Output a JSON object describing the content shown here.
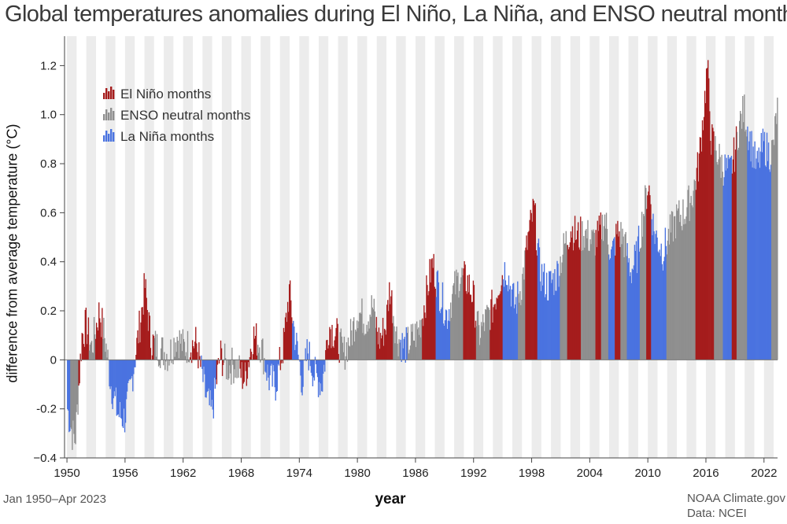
{
  "chart_data": {
    "type": "bar",
    "title": "Global temperatures anomalies during El Niño, La Niña, and ENSO neutral months",
    "xlabel": "year",
    "ylabel": "difference from average temperature (°C)",
    "date_range": "Jan 1950–Apr 2023",
    "credit_line1": "NOAA Climate.gov",
    "credit_line2": "Data: NCEI",
    "ylim": [
      -0.4,
      1.32
    ],
    "xlim": [
      1949.75,
      2023.4
    ],
    "yticks": [
      -0.4,
      -0.2,
      0,
      0.2,
      0.4,
      0.6,
      0.8,
      1.0,
      1.2
    ],
    "ytick_labels": [
      "−0.4",
      "-0.2",
      "0",
      "0.2",
      "0.4",
      "0.6",
      "0.8",
      "1.0",
      "1.2"
    ],
    "xticks": [
      1950,
      1956,
      1962,
      1968,
      1974,
      1980,
      1986,
      1992,
      1998,
      2004,
      2010,
      2016,
      2022
    ],
    "xtick_labels": [
      "1950",
      "1956",
      "1962",
      "1968",
      "1974",
      "1980",
      "1986",
      "1992",
      "1998",
      "2004",
      "2010",
      "2016",
      "2022"
    ],
    "legend_position": "top-left",
    "colors": {
      "el_nino": "#a51c1c",
      "neutral": "#8f8f8f",
      "la_nina": "#4a73e0",
      "band": "#ececec"
    },
    "series": [
      {
        "key": "el_nino",
        "name": "El Niño months"
      },
      {
        "key": "neutral",
        "name": "ENSO neutral months"
      },
      {
        "key": "la_nina",
        "name": "La Niña months"
      }
    ],
    "anchor_months": [
      [
        1950.0,
        -0.2,
        "la_nina"
      ],
      [
        1950.5,
        -0.3,
        "neutral"
      ],
      [
        1950.8,
        -0.33,
        "neutral"
      ],
      [
        1951.5,
        0.1,
        "el_nino"
      ],
      [
        1951.9,
        0.14,
        "el_nino"
      ],
      [
        1952.5,
        0.05,
        "neutral"
      ],
      [
        1953.3,
        0.2,
        "el_nino"
      ],
      [
        1953.9,
        0.08,
        "neutral"
      ],
      [
        1954.5,
        -0.1,
        "la_nina"
      ],
      [
        1955.2,
        -0.22,
        "la_nina"
      ],
      [
        1955.9,
        -0.24,
        "la_nina"
      ],
      [
        1956.5,
        -0.12,
        "la_nina"
      ],
      [
        1957.5,
        0.15,
        "el_nino"
      ],
      [
        1958.0,
        0.3,
        "el_nino"
      ],
      [
        1958.6,
        0.08,
        "el_nino"
      ],
      [
        1959.3,
        0.05,
        "neutral"
      ],
      [
        1960.5,
        0.02,
        "neutral"
      ],
      [
        1961.3,
        0.1,
        "neutral"
      ],
      [
        1962.0,
        0.05,
        "neutral"
      ],
      [
        1963.3,
        0.07,
        "el_nino"
      ],
      [
        1964.3,
        -0.15,
        "la_nina"
      ],
      [
        1964.9,
        -0.22,
        "la_nina"
      ],
      [
        1965.8,
        0.02,
        "el_nino"
      ],
      [
        1966.5,
        -0.03,
        "neutral"
      ],
      [
        1967.3,
        -0.02,
        "neutral"
      ],
      [
        1968.3,
        -0.08,
        "el_nino"
      ],
      [
        1969.2,
        0.1,
        "el_nino"
      ],
      [
        1970.0,
        0.06,
        "neutral"
      ],
      [
        1970.8,
        -0.08,
        "la_nina"
      ],
      [
        1971.5,
        -0.1,
        "la_nina"
      ],
      [
        1972.3,
        0.05,
        "el_nino"
      ],
      [
        1972.9,
        0.28,
        "el_nino"
      ],
      [
        1973.5,
        0.1,
        "la_nina"
      ],
      [
        1974.3,
        -0.1,
        "la_nina"
      ],
      [
        1974.8,
        0.04,
        "la_nina"
      ],
      [
        1975.5,
        -0.06,
        "la_nina"
      ],
      [
        1976.3,
        -0.1,
        "la_nina"
      ],
      [
        1977.0,
        0.14,
        "el_nino"
      ],
      [
        1977.8,
        0.1,
        "el_nino"
      ],
      [
        1978.5,
        0.02,
        "neutral"
      ],
      [
        1979.3,
        0.1,
        "neutral"
      ],
      [
        1980.0,
        0.2,
        "neutral"
      ],
      [
        1980.8,
        0.16,
        "neutral"
      ],
      [
        1981.5,
        0.22,
        "neutral"
      ],
      [
        1982.2,
        0.08,
        "el_nino"
      ],
      [
        1982.9,
        0.14,
        "el_nino"
      ],
      [
        1983.3,
        0.3,
        "el_nino"
      ],
      [
        1984.0,
        0.1,
        "neutral"
      ],
      [
        1984.8,
        0.05,
        "la_nina"
      ],
      [
        1985.5,
        0.08,
        "neutral"
      ],
      [
        1986.3,
        0.12,
        "neutral"
      ],
      [
        1987.0,
        0.25,
        "el_nino"
      ],
      [
        1987.7,
        0.4,
        "el_nino"
      ],
      [
        1988.4,
        0.28,
        "la_nina"
      ],
      [
        1989.2,
        0.18,
        "la_nina"
      ],
      [
        1989.9,
        0.28,
        "neutral"
      ],
      [
        1990.5,
        0.34,
        "neutral"
      ],
      [
        1991.3,
        0.32,
        "el_nino"
      ],
      [
        1991.9,
        0.26,
        "el_nino"
      ],
      [
        1992.5,
        0.1,
        "neutral"
      ],
      [
        1993.2,
        0.16,
        "neutral"
      ],
      [
        1994.0,
        0.22,
        "el_nino"
      ],
      [
        1994.6,
        0.32,
        "el_nino"
      ],
      [
        1995.3,
        0.38,
        "la_nina"
      ],
      [
        1996.2,
        0.22,
        "la_nina"
      ],
      [
        1996.9,
        0.3,
        "neutral"
      ],
      [
        1997.6,
        0.5,
        "el_nino"
      ],
      [
        1998.2,
        0.62,
        "el_nino"
      ],
      [
        1998.8,
        0.36,
        "la_nina"
      ],
      [
        1999.6,
        0.3,
        "la_nina"
      ],
      [
        2000.5,
        0.34,
        "la_nina"
      ],
      [
        2001.3,
        0.46,
        "neutral"
      ],
      [
        2002.0,
        0.54,
        "el_nino"
      ],
      [
        2002.7,
        0.5,
        "el_nino"
      ],
      [
        2003.4,
        0.52,
        "neutral"
      ],
      [
        2004.2,
        0.48,
        "neutral"
      ],
      [
        2004.8,
        0.5,
        "el_nino"
      ],
      [
        2005.5,
        0.58,
        "neutral"
      ],
      [
        2006.2,
        0.42,
        "la_nina"
      ],
      [
        2006.8,
        0.52,
        "el_nino"
      ],
      [
        2007.4,
        0.5,
        "neutral"
      ],
      [
        2008.2,
        0.36,
        "la_nina"
      ],
      [
        2008.8,
        0.42,
        "la_nina"
      ],
      [
        2009.5,
        0.6,
        "neutral"
      ],
      [
        2010.0,
        0.72,
        "el_nino"
      ],
      [
        2010.6,
        0.52,
        "la_nina"
      ],
      [
        2011.5,
        0.44,
        "la_nina"
      ],
      [
        2012.3,
        0.52,
        "neutral"
      ],
      [
        2013.0,
        0.58,
        "neutral"
      ],
      [
        2013.8,
        0.6,
        "neutral"
      ],
      [
        2014.6,
        0.68,
        "neutral"
      ],
      [
        2015.2,
        0.8,
        "el_nino"
      ],
      [
        2015.8,
        1.05,
        "el_nino"
      ],
      [
        2016.1,
        1.2,
        "el_nino"
      ],
      [
        2016.5,
        0.9,
        "el_nino"
      ],
      [
        2017.0,
        0.86,
        "neutral"
      ],
      [
        2017.5,
        0.8,
        "neutral"
      ],
      [
        2017.9,
        0.78,
        "la_nina"
      ],
      [
        2018.4,
        0.76,
        "la_nina"
      ],
      [
        2018.9,
        0.84,
        "el_nino"
      ],
      [
        2019.4,
        0.96,
        "neutral"
      ],
      [
        2019.9,
        1.02,
        "neutral"
      ],
      [
        2020.5,
        0.9,
        "la_nina"
      ],
      [
        2021.2,
        0.78,
        "la_nina"
      ],
      [
        2021.9,
        0.88,
        "la_nina"
      ],
      [
        2022.5,
        0.84,
        "la_nina"
      ],
      [
        2022.9,
        0.86,
        "neutral"
      ],
      [
        2023.3,
        1.02,
        "neutral"
      ]
    ]
  }
}
